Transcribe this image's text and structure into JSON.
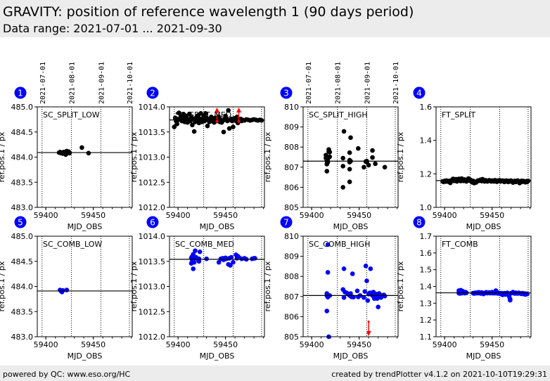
{
  "header": {
    "title": "GRAVITY: position of reference wavelength 1 (90 days period)",
    "subtitle": "Data range: 2021-07-01 ... 2021-09-30"
  },
  "footer": {
    "left": "powered by QC: www.eso.org/HC",
    "right": "created by trendPlotter v4.1.2 on 2021-10-10T19:29:31"
  },
  "colors": {
    "split": "#000000",
    "comb": "#0000ff",
    "outlier": "#ff0000",
    "badge": "#0000ff"
  },
  "date_ticks": {
    "labels": [
      "2021-07-01",
      "2021-08-01",
      "2021-09-01",
      "2021-10-01"
    ],
    "mjd": [
      59396,
      59427,
      59458,
      59488
    ]
  },
  "chart_data": [
    {
      "id": 1,
      "type": "scatter",
      "title": "SC_SPLIT_LOW",
      "xlabel": "MJD_OBS",
      "ylabel": "ref.pos.1 / px",
      "xlim": [
        59391,
        59491
      ],
      "ylim": [
        483.0,
        485.0
      ],
      "xticks": [
        59400,
        59450
      ],
      "yticks": [
        483.0,
        483.5,
        484.0,
        484.5,
        485.0
      ],
      "ytick_fmt": 1,
      "color_key": "split",
      "reference": 484.09,
      "show_date_axis": true,
      "show_xlabel": true,
      "x": [
        59414,
        59415,
        59416,
        59417,
        59418,
        59419,
        59421,
        59422,
        59424,
        59425,
        59438,
        59445
      ],
      "y": [
        484.09,
        484.1,
        484.08,
        484.09,
        484.07,
        484.1,
        484.05,
        484.12,
        484.11,
        484.08,
        484.19,
        484.08
      ],
      "outliers": []
    },
    {
      "id": 2,
      "type": "scatter",
      "title": "SC_SPLIT_MED",
      "xlabel": "MJD_OBS",
      "ylabel": "ref.pos.1 / px",
      "xlim": [
        59391,
        59491
      ],
      "ylim": [
        1012.0,
        1014.0
      ],
      "xticks": [
        59400,
        59450
      ],
      "yticks": [
        1012.0,
        1012.5,
        1013.0,
        1013.5,
        1014.0
      ],
      "ytick_fmt": 1,
      "color_key": "split",
      "reference": 1013.74,
      "show_date_axis": false,
      "show_xlabel": true,
      "x": [
        59396,
        59397,
        59398,
        59399,
        59400,
        59401,
        59402,
        59403,
        59404,
        59405,
        59406,
        59407,
        59408,
        59409,
        59410,
        59411,
        59412,
        59413,
        59414,
        59415,
        59416,
        59417,
        59418,
        59419,
        59420,
        59421,
        59422,
        59423,
        59424,
        59425,
        59426,
        59427,
        59428,
        59429,
        59430,
        59431,
        59432,
        59433,
        59434,
        59435,
        59436,
        59437,
        59438,
        59439,
        59440,
        59441,
        59442,
        59443,
        59444,
        59445,
        59446,
        59447,
        59448,
        59449,
        59450,
        59451,
        59452,
        59453,
        59454,
        59455,
        59456,
        59457,
        59458,
        59459,
        59460,
        59461,
        59462,
        59463,
        59464,
        59465,
        59466,
        59467,
        59468,
        59470,
        59472,
        59474,
        59476,
        59478,
        59480,
        59482,
        59484,
        59486,
        59488
      ],
      "y": [
        1013.6,
        1013.78,
        1013.72,
        1013.66,
        1013.74,
        1013.88,
        1013.76,
        1013.8,
        1013.72,
        1013.77,
        1013.85,
        1013.7,
        1013.76,
        1013.82,
        1013.69,
        1013.75,
        1013.86,
        1013.72,
        1013.79,
        1013.64,
        1013.76,
        1013.51,
        1013.7,
        1013.78,
        1013.72,
        1013.83,
        1013.68,
        1013.76,
        1013.87,
        1013.7,
        1013.75,
        1013.82,
        1013.72,
        1013.87,
        1013.78,
        1013.62,
        1013.74,
        1013.7,
        1013.76,
        1013.8,
        1013.72,
        1013.75,
        1013.69,
        1013.78,
        1013.74,
        1013.72,
        1013.76,
        1013.8,
        1013.7,
        1013.74,
        1013.69,
        1013.72,
        1013.5,
        1013.75,
        1013.82,
        1013.76,
        1013.72,
        1013.93,
        1013.57,
        1013.74,
        1013.76,
        1013.72,
        1013.6,
        1013.77,
        1013.74,
        1013.72,
        1013.8,
        1013.68,
        1013.75,
        1013.73,
        1013.76,
        1013.72,
        1013.74,
        1013.73,
        1013.75,
        1013.74,
        1013.73,
        1013.74,
        1013.75,
        1013.74,
        1013.73,
        1013.74,
        1013.73
      ],
      "outliers": [
        {
          "x": 59441,
          "y": 1013.71,
          "direction": "up"
        },
        {
          "x": 59464,
          "y": 1013.71,
          "direction": "up"
        }
      ]
    },
    {
      "id": 3,
      "type": "scatter",
      "title": "SC_SPLIT_HIGH",
      "xlabel": "MJD_OBS",
      "ylabel": "ref.pos.1 / px",
      "xlim": [
        59391,
        59491
      ],
      "ylim": [
        805,
        810
      ],
      "xticks": [
        59400,
        59450
      ],
      "yticks": [
        805,
        806,
        807,
        808,
        809,
        810
      ],
      "ytick_fmt": 0,
      "color_key": "split",
      "reference": 807.3,
      "show_date_axis": true,
      "show_xlabel": true,
      "x": [
        59415,
        59415,
        59416,
        59416,
        59416,
        59417,
        59417,
        59418,
        59418,
        59419,
        59419,
        59433,
        59433,
        59433,
        59434,
        59440,
        59440,
        59440,
        59440,
        59440,
        59441,
        59441,
        59449,
        59455,
        59457,
        59458,
        59458,
        59460,
        59464,
        59464,
        59467,
        59477
      ],
      "y": [
        807.6,
        807.45,
        807.3,
        807.15,
        806.8,
        807.4,
        807.25,
        807.88,
        807.78,
        807.75,
        807.52,
        807.45,
        807.05,
        806.0,
        808.78,
        807.72,
        807.35,
        807.25,
        806.9,
        806.27,
        808.47,
        807.3,
        807.93,
        807.0,
        807.28,
        807.3,
        807.25,
        807.1,
        807.83,
        807.48,
        807.17,
        807.0
      ],
      "outliers": []
    },
    {
      "id": 4,
      "type": "scatter",
      "title": "FT_SPLIT",
      "xlabel": "MJD_OBS",
      "ylabel": "ref.pos.1 / px",
      "xlim": [
        59391,
        59491
      ],
      "ylim": [
        1.0,
        1.6
      ],
      "xticks": [
        59400,
        59450
      ],
      "yticks": [
        1.0,
        1.2,
        1.4,
        1.6
      ],
      "ytick_fmt": 1,
      "color_key": "split",
      "reference": 1.16,
      "show_date_axis": false,
      "show_xlabel": true,
      "x": [
        59398,
        59399,
        59400,
        59401,
        59402,
        59403,
        59404,
        59405,
        59406,
        59408,
        59409,
        59410,
        59411,
        59412,
        59413,
        59414,
        59415,
        59416,
        59417,
        59418,
        59419,
        59420,
        59421,
        59422,
        59423,
        59424,
        59425,
        59426,
        59427,
        59428,
        59429,
        59430,
        59431,
        59432,
        59433,
        59434,
        59435,
        59436,
        59437,
        59438,
        59439,
        59440,
        59441,
        59442,
        59443,
        59444,
        59445,
        59446,
        59447,
        59448,
        59449,
        59450,
        59451,
        59452,
        59453,
        59454,
        59455,
        59456,
        59457,
        59458,
        59459,
        59460,
        59461,
        59462,
        59463,
        59464,
        59465,
        59466,
        59467,
        59468,
        59469,
        59470,
        59471,
        59472,
        59473,
        59474,
        59475,
        59476,
        59477,
        59478,
        59479,
        59480,
        59481,
        59482,
        59483,
        59484,
        59485,
        59486,
        59487,
        59488
      ],
      "y": [
        1.155,
        1.152,
        1.158,
        1.154,
        1.16,
        1.156,
        1.153,
        1.158,
        1.146,
        1.165,
        1.17,
        1.158,
        1.162,
        1.168,
        1.155,
        1.165,
        1.17,
        1.16,
        1.157,
        1.172,
        1.163,
        1.158,
        1.166,
        1.16,
        1.155,
        1.162,
        1.172,
        1.16,
        1.165,
        1.155,
        1.15,
        1.158,
        1.145,
        1.152,
        1.148,
        1.155,
        1.16,
        1.158,
        1.162,
        1.165,
        1.157,
        1.168,
        1.16,
        1.155,
        1.162,
        1.158,
        1.155,
        1.16,
        1.162,
        1.158,
        1.155,
        1.16,
        1.157,
        1.155,
        1.162,
        1.158,
        1.153,
        1.16,
        1.157,
        1.162,
        1.155,
        1.158,
        1.16,
        1.155,
        1.152,
        1.158,
        1.16,
        1.155,
        1.152,
        1.158,
        1.155,
        1.16,
        1.154,
        1.148,
        1.155,
        1.158,
        1.152,
        1.156,
        1.16,
        1.154,
        1.145,
        1.152,
        1.158,
        1.153,
        1.157,
        1.155,
        1.15,
        1.156,
        1.152,
        1.158
      ],
      "outliers": []
    },
    {
      "id": 5,
      "type": "scatter",
      "title": "SC_COMB_LOW",
      "xlabel": "MJD_OBS",
      "ylabel": "ref.pos.1 / px",
      "xlim": [
        59391,
        59491
      ],
      "ylim": [
        483.0,
        485.0
      ],
      "xticks": [
        59400,
        59450
      ],
      "yticks": [
        483.0,
        483.5,
        484.0,
        484.5,
        485.0
      ],
      "ytick_fmt": 1,
      "color_key": "comb",
      "reference": 483.91,
      "show_date_axis": false,
      "show_xlabel": true,
      "x": [
        59415,
        59416,
        59417,
        59418,
        59422
      ],
      "y": [
        483.93,
        483.91,
        483.89,
        483.92,
        483.93
      ],
      "outliers": []
    },
    {
      "id": 6,
      "type": "scatter",
      "title": "SC_COMB_MED",
      "xlabel": "MJD_OBS",
      "ylabel": "ref.pos.1 / px",
      "xlim": [
        59391,
        59491
      ],
      "ylim": [
        1012.0,
        1014.0
      ],
      "xticks": [
        59400,
        59450
      ],
      "yticks": [
        1012.0,
        1012.5,
        1013.0,
        1013.5,
        1014.0
      ],
      "ytick_fmt": 1,
      "color_key": "comb",
      "reference": 1013.54,
      "show_date_axis": false,
      "show_xlabel": true,
      "x": [
        59414,
        59414,
        59415,
        59415,
        59416,
        59416,
        59416,
        59417,
        59417,
        59418,
        59419,
        59421,
        59422,
        59422,
        59423,
        59430,
        59443,
        59445,
        59447,
        59448,
        59450,
        59451,
        59453,
        59454,
        59455,
        59456,
        59458,
        59461,
        59462,
        59463,
        59464,
        59467,
        59470,
        59472,
        59478,
        59480,
        59481
      ],
      "y": [
        1013.57,
        1013.46,
        1013.6,
        1013.52,
        1013.64,
        1013.5,
        1013.35,
        1013.56,
        1013.48,
        1013.71,
        1013.58,
        1013.54,
        1013.5,
        1013.55,
        1013.69,
        1013.55,
        1013.48,
        1013.55,
        1013.56,
        1013.53,
        1013.57,
        1013.55,
        1013.44,
        1013.56,
        1013.42,
        1013.58,
        1013.48,
        1013.63,
        1013.56,
        1013.6,
        1013.58,
        1013.55,
        1013.56,
        1013.54,
        1013.55,
        1013.56,
        1013.56
      ],
      "outliers": []
    },
    {
      "id": 7,
      "type": "scatter",
      "title": "SC_COMB_HIGH",
      "xlabel": "MJD_OBS",
      "ylabel": "ref.pos.1 / px",
      "xlim": [
        59391,
        59491
      ],
      "ylim": [
        805,
        810
      ],
      "xticks": [
        59400,
        59450
      ],
      "yticks": [
        805,
        806,
        807,
        808,
        809,
        810
      ],
      "ytick_fmt": 0,
      "color_key": "comb",
      "reference": 807.05,
      "show_date_axis": false,
      "show_xlabel": true,
      "x": [
        59416,
        59416,
        59416,
        59417,
        59417,
        59417,
        59418,
        59419,
        59433,
        59434,
        59434,
        59435,
        59437,
        59439,
        59440,
        59441,
        59442,
        59443,
        59444,
        59448,
        59449,
        59451,
        59455,
        59456,
        59457,
        59458,
        59459,
        59460,
        59461,
        59462,
        59463,
        59464,
        59465,
        59466,
        59467,
        59468,
        59469,
        59470,
        59471,
        59472,
        59473,
        59474,
        59476,
        59477
      ],
      "y": [
        807.15,
        807.05,
        806.28,
        809.58,
        808.2,
        806.97,
        805.0,
        807.05,
        807.35,
        808.38,
        806.95,
        807.22,
        807.18,
        807.1,
        807.05,
        807.15,
        806.98,
        808.13,
        806.97,
        807.28,
        806.98,
        807.05,
        806.95,
        807.25,
        808.52,
        807.78,
        806.8,
        807.12,
        807.18,
        808.38,
        807.18,
        807.05,
        807.22,
        806.9,
        807.0,
        807.12,
        806.9,
        806.48,
        807.15,
        807.0,
        806.95,
        807.05,
        807.08,
        807.02
      ],
      "outliers": [
        {
          "x": 59460,
          "y": 805.75,
          "direction": "down"
        }
      ]
    },
    {
      "id": 8,
      "type": "scatter",
      "title": "FT_COMB",
      "xlabel": "MJD_OBS",
      "ylabel": "ref.pos.1 / px",
      "xlim": [
        59391,
        59491
      ],
      "ylim": [
        1.1,
        1.7
      ],
      "xticks": [
        59400,
        59450
      ],
      "yticks": [
        1.1,
        1.2,
        1.3,
        1.4,
        1.5,
        1.6,
        1.7
      ],
      "ytick_fmt": 1,
      "color_key": "comb",
      "reference": 1.362,
      "show_date_axis": false,
      "show_xlabel": true,
      "x": [
        59415,
        59415,
        59416,
        59416,
        59417,
        59417,
        59418,
        59418,
        59419,
        59420,
        59421,
        59422,
        59423,
        59430,
        59431,
        59432,
        59433,
        59434,
        59435,
        59436,
        59437,
        59438,
        59439,
        59440,
        59441,
        59442,
        59443,
        59444,
        59445,
        59446,
        59447,
        59448,
        59449,
        59450,
        59451,
        59452,
        59453,
        59454,
        59455,
        59456,
        59457,
        59458,
        59459,
        59460,
        59461,
        59462,
        59463,
        59464,
        59465,
        59466,
        59467,
        59468,
        59469,
        59469,
        59470,
        59471,
        59472,
        59473,
        59474,
        59475,
        59476,
        59477,
        59478,
        59479,
        59480,
        59481,
        59482,
        59483,
        59484,
        59485,
        59486,
        59487
      ],
      "y": [
        1.375,
        1.36,
        1.372,
        1.358,
        1.378,
        1.362,
        1.37,
        1.36,
        1.372,
        1.365,
        1.36,
        1.366,
        1.362,
        1.36,
        1.358,
        1.362,
        1.36,
        1.363,
        1.36,
        1.365,
        1.362,
        1.358,
        1.364,
        1.36,
        1.355,
        1.36,
        1.363,
        1.365,
        1.36,
        1.362,
        1.364,
        1.36,
        1.362,
        1.366,
        1.36,
        1.362,
        1.36,
        1.375,
        1.365,
        1.358,
        1.362,
        1.36,
        1.355,
        1.36,
        1.35,
        1.358,
        1.36,
        1.352,
        1.358,
        1.362,
        1.358,
        1.34,
        1.325,
        1.318,
        1.36,
        1.362,
        1.366,
        1.36,
        1.358,
        1.362,
        1.36,
        1.358,
        1.362,
        1.36,
        1.358,
        1.356,
        1.36,
        1.355,
        1.358,
        1.352,
        1.356,
        1.355
      ],
      "outliers": []
    }
  ]
}
